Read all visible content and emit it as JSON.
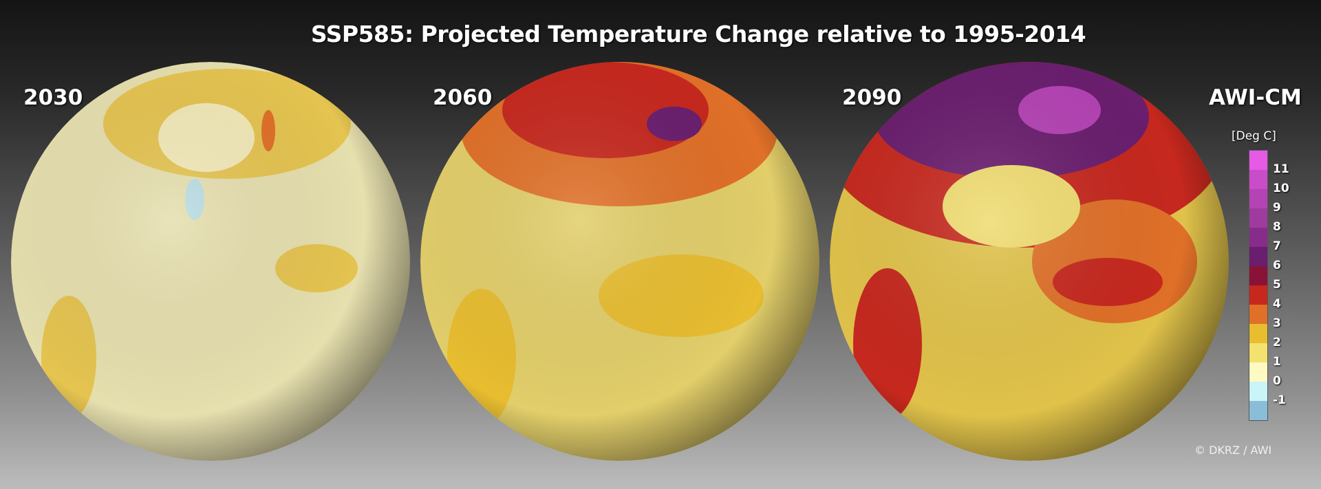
{
  "title": "SSP585: Projected Temperature Change relative to 1995-2014",
  "model": "AWI-CM",
  "panels": [
    {
      "year": "2030"
    },
    {
      "year": "2060"
    },
    {
      "year": "2090"
    }
  ],
  "legend": {
    "unit": "[Deg C]",
    "ticks": [
      "11",
      "10",
      "9",
      "8",
      "7",
      "6",
      "5",
      "4",
      "3",
      "2",
      "1",
      "0",
      "-1"
    ],
    "colors": [
      "#e65ae6",
      "#c94cc9",
      "#b443b4",
      "#9f3a9f",
      "#872c8a",
      "#6a1e6e",
      "#891238",
      "#c6281e",
      "#e07028",
      "#e8bd30",
      "#f5e16e",
      "#fffac2",
      "#c9f4f8",
      "#8abdd8"
    ]
  },
  "credit": "© DKRZ / AWI"
}
